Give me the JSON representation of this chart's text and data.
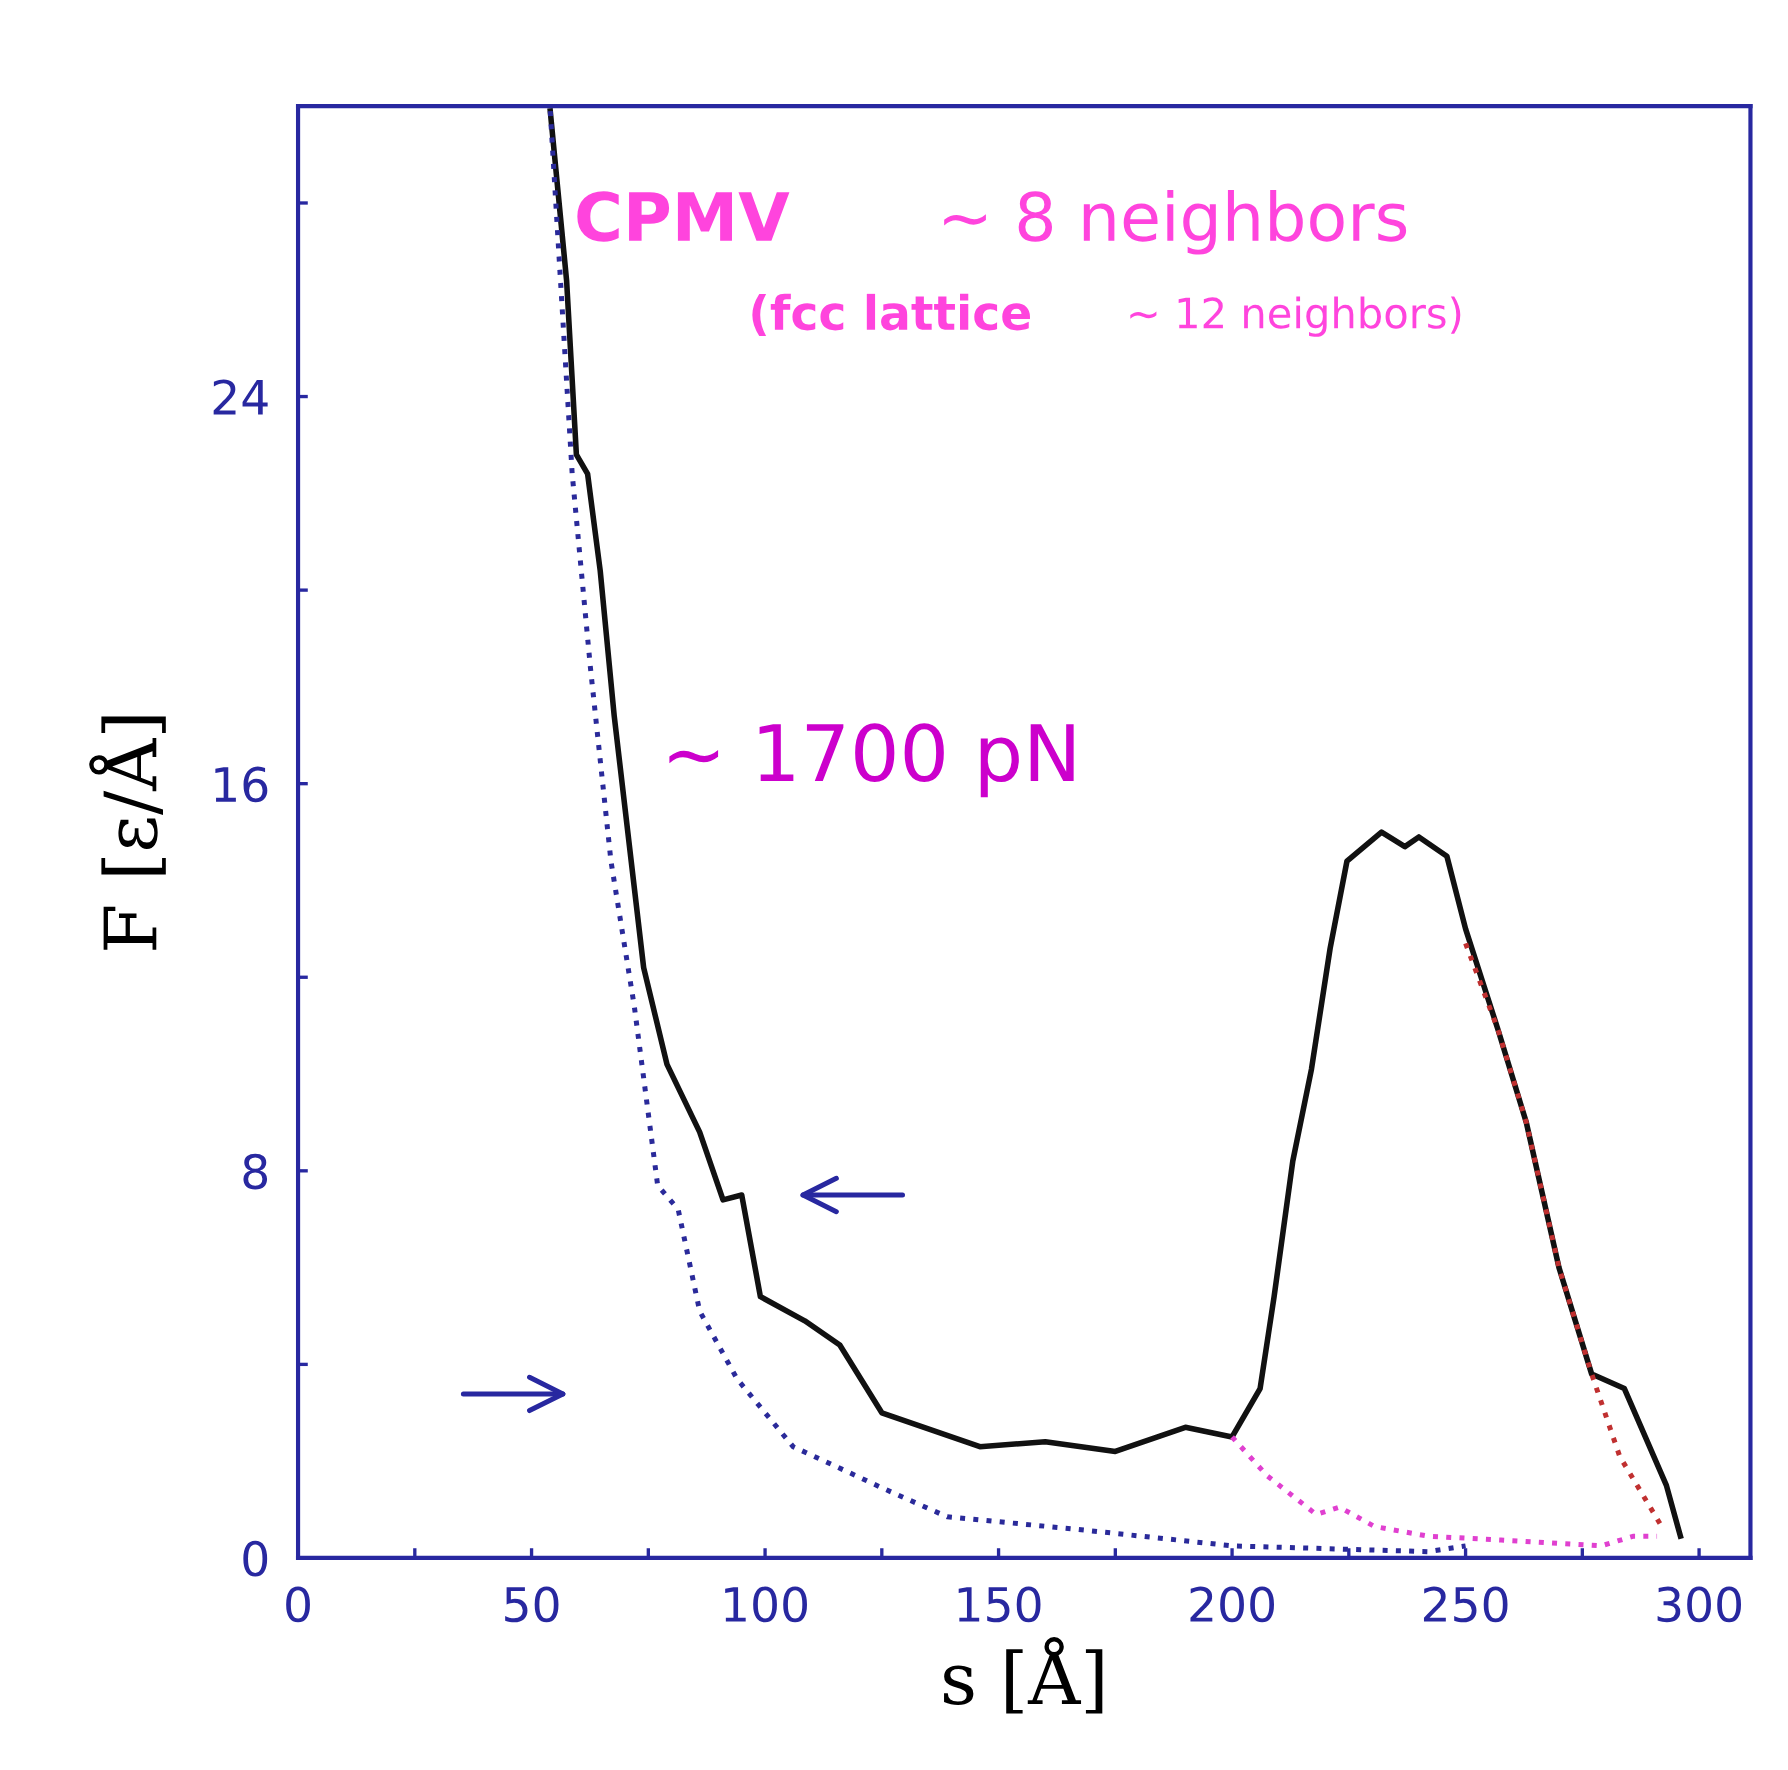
{
  "chart_data": {
    "type": "line",
    "xlabel": "s [Å]",
    "ylabel": "F [ε/Å]",
    "xlim": [
      0,
      311
    ],
    "ylim": [
      0,
      30
    ],
    "xticks": [
      0,
      {
        "value": 25,
        "label": null
      },
      50,
      {
        "value": 75,
        "label": null
      },
      100,
      {
        "value": 125,
        "label": null
      },
      150,
      {
        "value": 175,
        "label": null
      },
      200,
      {
        "value": 225,
        "label": null
      },
      250,
      {
        "value": 275,
        "label": null
      },
      300
    ],
    "yticks": [
      0,
      {
        "value": 4,
        "label": null
      },
      8,
      {
        "value": 12,
        "label": null
      },
      16,
      {
        "value": 20,
        "label": null
      },
      24,
      {
        "value": 28,
        "label": null
      }
    ],
    "grid": false,
    "legend": false,
    "annotations": [
      "CPMV",
      "~ 8 neighbors",
      "(fcc lattice",
      "~ 12 neighbors)",
      "~ 1700 pN"
    ],
    "series": [
      {
        "color": "#111111",
        "line_style": "solid",
        "x": [
          54,
          57.5,
          59.6,
          62,
          64.7,
          67.7,
          74,
          79,
          86,
          91,
          95,
          99,
          108.5,
          116,
          125,
          146,
          160,
          175,
          190,
          200,
          206,
          209,
          213,
          217,
          221,
          224.6,
          232,
          237,
          240,
          246,
          250,
          257,
          263,
          270,
          277,
          284,
          293,
          296
        ],
        "values": [
          29.9,
          26.4,
          22.8,
          22.4,
          20.4,
          17.4,
          12.2,
          10.2,
          8.8,
          7.4,
          7.5,
          5.4,
          4.9,
          4.4,
          3.0,
          2.3,
          2.4,
          2.2,
          2.7,
          2.5,
          3.5,
          5.4,
          8.2,
          10.1,
          12.6,
          14.4,
          15.0,
          14.7,
          14.9,
          14.5,
          13.0,
          10.9,
          9.0,
          6.0,
          3.8,
          3.5,
          1.5,
          0.45
        ]
      },
      {
        "color": "#2a2a9a",
        "line_style": "dotted",
        "x": [
          54,
          58.7,
          62.6,
          67,
          72,
          77,
          81.4,
          86,
          94,
          106,
          115,
          125,
          139,
          166,
          200,
          242,
          250
        ],
        "values": [
          29.9,
          22.4,
          18.4,
          14.4,
          11.4,
          7.7,
          7.2,
          5.1,
          3.7,
          2.3,
          1.9,
          1.45,
          0.85,
          0.6,
          0.25,
          0.13,
          0.25
        ]
      },
      {
        "color": "#e040d0",
        "line_style": "dotted",
        "x": [
          200,
          207.5,
          218,
          223,
          230.5,
          242,
          257.6,
          279,
          286,
          291
        ],
        "values": [
          2.5,
          1.7,
          0.9,
          1.05,
          0.65,
          0.45,
          0.37,
          0.25,
          0.45,
          0.45
        ]
      },
      {
        "color": "#c03030",
        "line_style": "dotted",
        "x": [
          250,
          257,
          263,
          270,
          277,
          283,
          292
        ],
        "values": [
          12.7,
          10.9,
          9.0,
          6.0,
          3.8,
          2.1,
          0.65
        ]
      }
    ]
  }
}
